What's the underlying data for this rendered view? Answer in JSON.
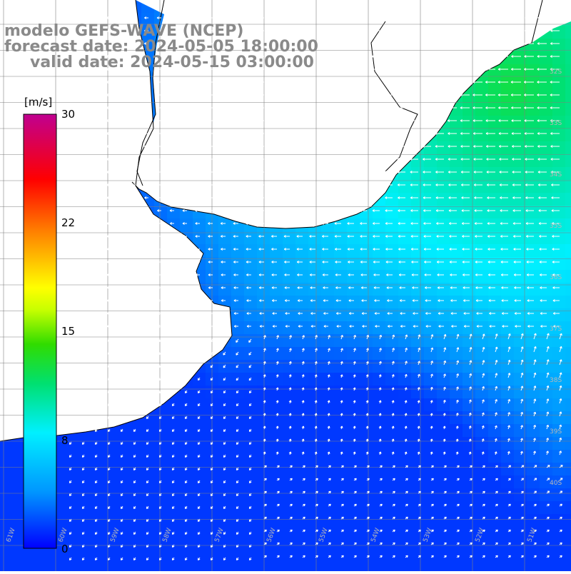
{
  "title": {
    "line1": "modelo GEFS-WAVE (NCEP)",
    "line2": "forecast date: 2024-05-05 18:00:00",
    "line3": "valid date: 2024-05-15 03:00:00"
  },
  "colorbar": {
    "unit": "[m/s]",
    "ticks": [
      "30",
      "22",
      "15",
      "8",
      "0"
    ],
    "min": 0,
    "max": 30
  },
  "map": {
    "lat_labels": [
      "32S",
      "33S",
      "34S",
      "35S",
      "36S",
      "37S",
      "38S",
      "39S",
      "40S"
    ],
    "lon_labels": [
      "61W",
      "60W",
      "59W",
      "58W",
      "57W",
      "56W",
      "55W",
      "54W",
      "53W",
      "52W",
      "51W"
    ],
    "land_color": "#ffffff",
    "coast_color": "#000000",
    "grid_color": "#808080"
  },
  "chart_data": {
    "type": "heatmap",
    "variable": "wind speed",
    "units": "m/s",
    "value_range": [
      0,
      30
    ],
    "description_values": {
      "north_east_coastal_max": 12,
      "open_ocean_south_min": 3,
      "southwest_shelf": 6
    }
  }
}
